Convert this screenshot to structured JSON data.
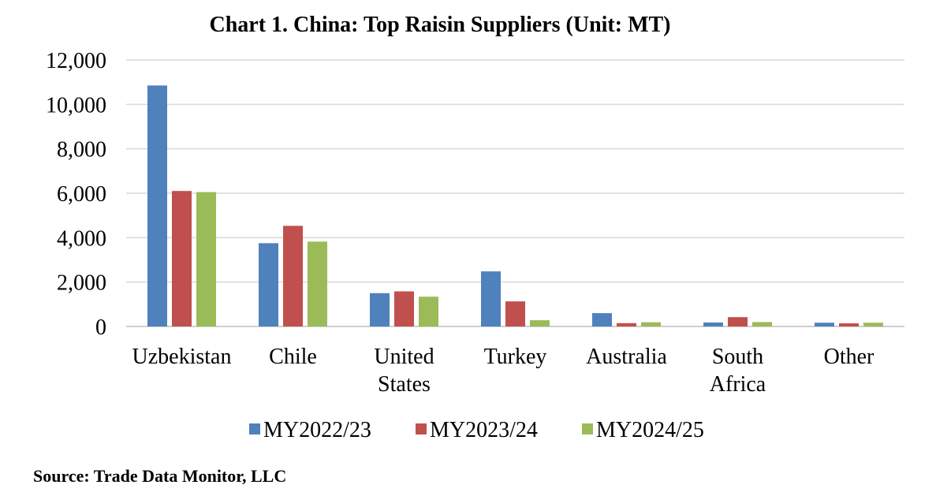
{
  "chart_data": {
    "type": "bar",
    "title": "Chart 1. China: Top Raisin Suppliers (Unit: MT)",
    "categories": [
      [
        "Uzbekistan"
      ],
      [
        "Chile"
      ],
      [
        "United",
        "States"
      ],
      [
        "Turkey"
      ],
      [
        "Australia"
      ],
      [
        "South",
        "Africa"
      ],
      [
        "Other"
      ]
    ],
    "series": [
      {
        "name": "MY2022/23",
        "color": "#4f81bd",
        "values": [
          10850,
          3750,
          1500,
          2480,
          600,
          180,
          170
        ]
      },
      {
        "name": "MY2023/24",
        "color": "#c0504d",
        "values": [
          6100,
          4530,
          1580,
          1130,
          150,
          420,
          140
        ]
      },
      {
        "name": "MY2024/25",
        "color": "#9bbb59",
        "values": [
          6050,
          3820,
          1340,
          280,
          190,
          200,
          170
        ]
      }
    ],
    "yticks": [
      "0",
      "2,000",
      "4,000",
      "6,000",
      "8,000",
      "10,000",
      "12,000"
    ],
    "ylim": [
      0,
      12000
    ],
    "grid": true,
    "legend": "bottom",
    "source": "Source: Trade Data Monitor, LLC"
  }
}
